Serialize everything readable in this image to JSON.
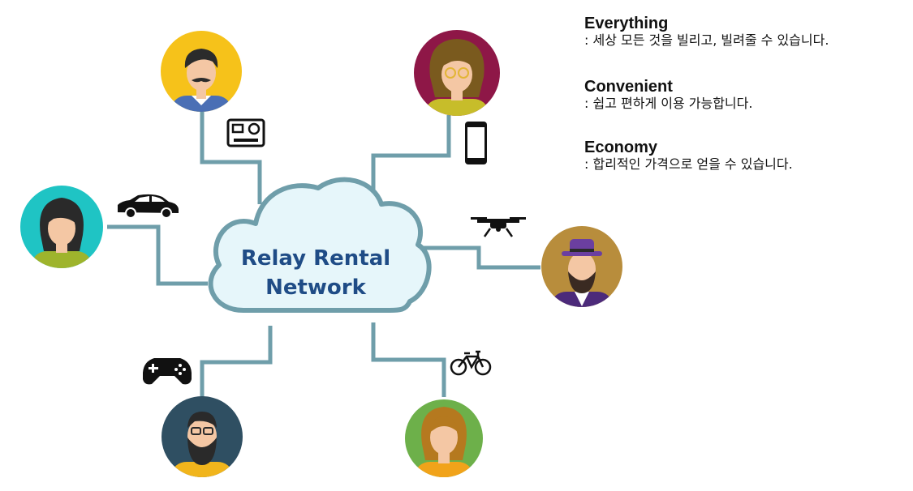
{
  "diagram": {
    "center_label": {
      "line1": "Relay Rental",
      "line2": "Network"
    },
    "features": [
      {
        "title": "Everything",
        "desc": ": 세상 모든 것을 빌리고, 빌려줄 수 있습니다."
      },
      {
        "title": "Convenient",
        "desc": ": 쉽고 편하게 이용 가능합니다."
      },
      {
        "title": "Economy",
        "desc": ": 합리적인 가격으로 얻을 수 있습니다."
      }
    ],
    "items": [
      "action-camera-icon",
      "smartphone-icon",
      "car-icon",
      "drone-icon",
      "gamepad-icon",
      "bicycle-icon"
    ],
    "colors": {
      "connector": "#6f9eaa",
      "cloud_fill": "#e6f6fa",
      "cloud_stroke": "#6f9eaa",
      "label": "#1f4c86"
    }
  }
}
